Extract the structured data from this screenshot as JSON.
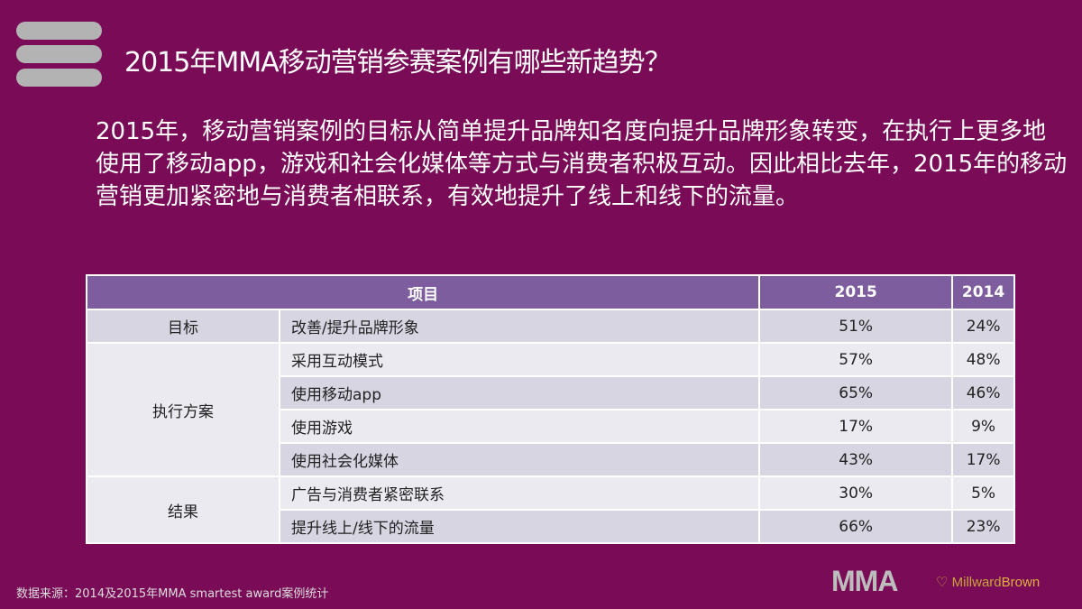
{
  "title": "2015年MMA移动营销参赛案例有哪些新趋势？",
  "body": "2015年，移动营销案例的目标从简单提升品牌知名度向提升品牌形象转变，在执行上更多地使用了移动app，游戏和社会化媒体等方式与消费者积极互动。因此相比去年，2015年的移动营销更加紧密地与消费者相联系，有效地提升了线上和线下的流量。",
  "table": {
    "headers": [
      "项目",
      "2015",
      "2014"
    ],
    "groups": [
      "目标",
      "执行方案",
      "结果"
    ],
    "rows": [
      [
        "改善/提升品牌形象",
        "51%",
        "24%"
      ],
      [
        "采用互动模式",
        "57%",
        "48%"
      ],
      [
        "使用移动app",
        "65%",
        "46%"
      ],
      [
        "使用游戏",
        "17%",
        "9%"
      ],
      [
        "使用社会化媒体",
        "43%",
        "17%"
      ],
      [
        "广告与消费者紧密联系",
        "30%",
        "5%"
      ],
      [
        "提升线上/线下的流量",
        "66%",
        "23%"
      ]
    ]
  },
  "source": "数据来源：2014及2015年MMA smartest award案例统计",
  "logos": {
    "mma": "MMA",
    "mb1": "Millward",
    "mb2": "Brown"
  }
}
